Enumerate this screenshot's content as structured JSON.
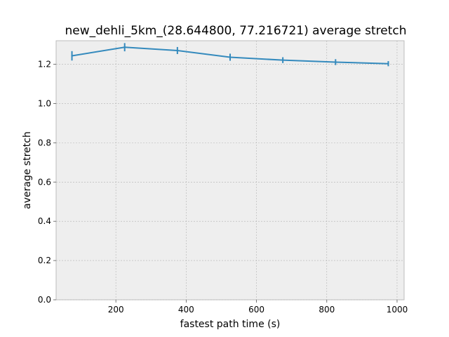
{
  "chart_data": {
    "type": "line",
    "title": "new_dehli_5km_(28.644800, 77.216721) average stretch",
    "xlabel": "fastest path time (s)",
    "ylabel": "average stretch",
    "xlim": [
      30,
      1020
    ],
    "ylim": [
      0,
      1.32
    ],
    "xticks": [
      200,
      400,
      600,
      800,
      1000
    ],
    "yticks": [
      0.0,
      0.2,
      0.4,
      0.6,
      0.8,
      1.0,
      1.2
    ],
    "x_tick_labels": [
      "200",
      "400",
      "600",
      "800",
      "1000"
    ],
    "y_tick_labels": [
      "0.0",
      "0.2",
      "0.4",
      "0.6",
      "0.8",
      "1.0",
      "1.2"
    ],
    "grid": true,
    "series": [
      {
        "x": [
          75,
          225,
          375,
          525,
          675,
          825,
          975
        ],
        "y": [
          1.243,
          1.287,
          1.27,
          1.236,
          1.221,
          1.211,
          1.203
        ],
        "yerr": [
          0.024,
          0.021,
          0.018,
          0.018,
          0.015,
          0.015,
          0.013
        ],
        "color": "#348ABD"
      }
    ],
    "plot_background": "#EEEEEE",
    "grid_color": "#B2B2B2"
  }
}
